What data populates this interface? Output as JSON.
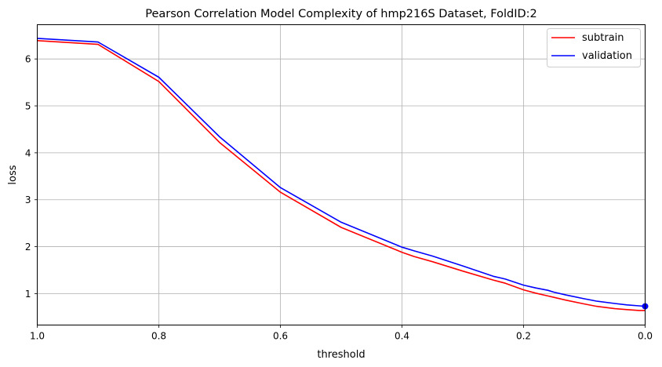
{
  "chart_data": {
    "type": "line",
    "title": "Pearson Correlation Model Complexity of hmp216S Dataset, FoldID:2",
    "xlabel": "threshold",
    "ylabel": "loss",
    "xlim": [
      1.0,
      0.0
    ],
    "ylim": [
      0.33,
      6.73
    ],
    "x_inverted": true,
    "grid": true,
    "legend_position": "top-right",
    "xticks": [
      "1.0",
      "0.8",
      "0.6",
      "0.4",
      "0.2",
      "0.0"
    ],
    "xtick_values": [
      1.0,
      0.8,
      0.6,
      0.4,
      0.2,
      0.0
    ],
    "yticks": [
      "1",
      "2",
      "3",
      "4",
      "5",
      "6"
    ],
    "ytick_values": [
      1,
      2,
      3,
      4,
      5,
      6
    ],
    "x": [
      1.0,
      0.9,
      0.8,
      0.7,
      0.6,
      0.5,
      0.4,
      0.38,
      0.35,
      0.3,
      0.25,
      0.23,
      0.2,
      0.18,
      0.16,
      0.15,
      0.13,
      0.1,
      0.08,
      0.05,
      0.03,
      0.01,
      0.0
    ],
    "series": [
      {
        "name": "subtrain",
        "color": "#ff0000",
        "values": [
          6.39,
          6.31,
          5.52,
          4.22,
          3.16,
          2.41,
          1.88,
          1.79,
          1.68,
          1.48,
          1.29,
          1.22,
          1.08,
          1.01,
          0.95,
          0.92,
          0.86,
          0.78,
          0.73,
          0.68,
          0.66,
          0.64,
          0.64
        ]
      },
      {
        "name": "validation",
        "color": "#0000ff",
        "values": [
          6.44,
          6.36,
          5.61,
          4.34,
          3.26,
          2.52,
          1.99,
          1.91,
          1.8,
          1.59,
          1.37,
          1.31,
          1.18,
          1.12,
          1.07,
          1.03,
          0.97,
          0.89,
          0.84,
          0.79,
          0.76,
          0.74,
          0.73
        ]
      }
    ],
    "marker": {
      "x": 0.0,
      "y": 0.73,
      "color": "#0000ff"
    }
  }
}
